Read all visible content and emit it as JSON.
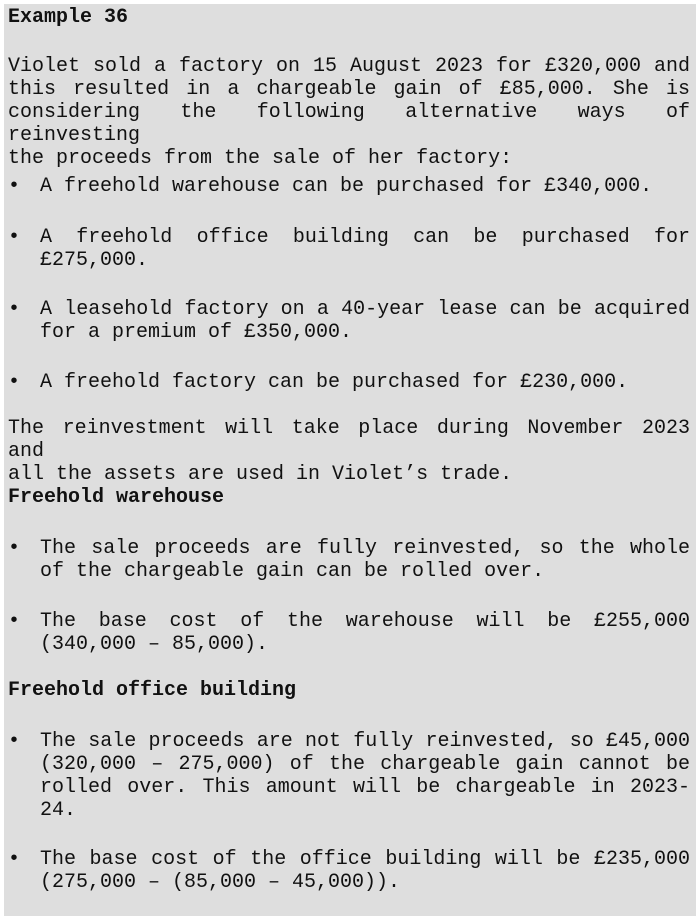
{
  "title": "Example 36",
  "intro": [
    "Violet sold a factory on 15 August 2023 for £320,000 and",
    "this resulted in a chargeable gain of £85,000. She is",
    "considering the following alternative ways of reinvesting",
    "the proceeds from the sale of her factory:"
  ],
  "options": [
    [
      "A freehold warehouse can be purchased for £340,000."
    ],
    [
      "A freehold office building can be purchased for",
      "£275,000."
    ],
    [
      "A leasehold factory on a 40-year lease can be acquired",
      "for a premium of £350,000."
    ],
    [
      "A freehold factory can be purchased for £230,000."
    ]
  ],
  "reinvest": [
    "The reinvestment will take place during November 2023 and",
    "all the assets are used in Violet’s trade."
  ],
  "sections": [
    {
      "heading": "Freehold warehouse",
      "bullets": [
        [
          "The sale proceeds are fully reinvested, so the whole",
          "of the chargeable gain can be rolled over."
        ],
        [
          "The base cost of the warehouse will be £255,000",
          "(340,000 – 85,000)."
        ]
      ]
    },
    {
      "heading": "Freehold office building",
      "bullets": [
        [
          "The sale proceeds are not fully reinvested, so £45,000",
          "(320,000 – 275,000) of the chargeable gain cannot be",
          "rolled over. This amount will be chargeable in 2023-",
          "24."
        ],
        [
          "The base cost of the office building will be £235,000",
          "(275,000 – (85,000 – 45,000))."
        ]
      ]
    }
  ],
  "bullet_char": "•"
}
